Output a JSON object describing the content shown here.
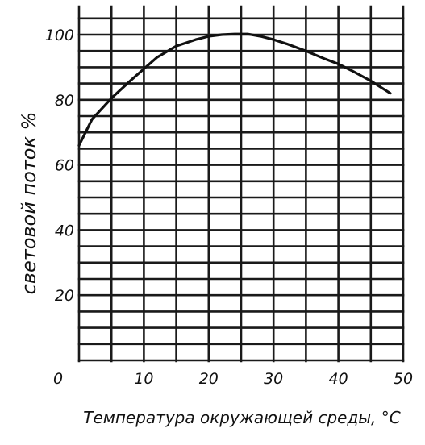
{
  "chart_data": {
    "type": "line",
    "xlabel": "Температура окружающей среды, °C",
    "ylabel": "световой поток %",
    "xlim": [
      0,
      50
    ],
    "ylim": [
      0,
      105
    ],
    "x_ticks": [
      "0",
      "10",
      "20",
      "30",
      "40",
      "50"
    ],
    "y_ticks": [
      "20",
      "40",
      "60",
      "80",
      "100"
    ],
    "grid": true,
    "series": [
      {
        "x": [
          0,
          2,
          5,
          8,
          10,
          12,
          15,
          18,
          20,
          22,
          24,
          26,
          28,
          30,
          32,
          35,
          38,
          40,
          42,
          45,
          48
        ],
        "y": [
          66,
          74,
          80.5,
          86,
          89.5,
          93,
          96.5,
          98.5,
          99.5,
          100,
          100.2,
          100.2,
          99.5,
          98.5,
          97.2,
          95,
          92.5,
          91,
          89,
          85.8,
          82
        ]
      }
    ]
  }
}
